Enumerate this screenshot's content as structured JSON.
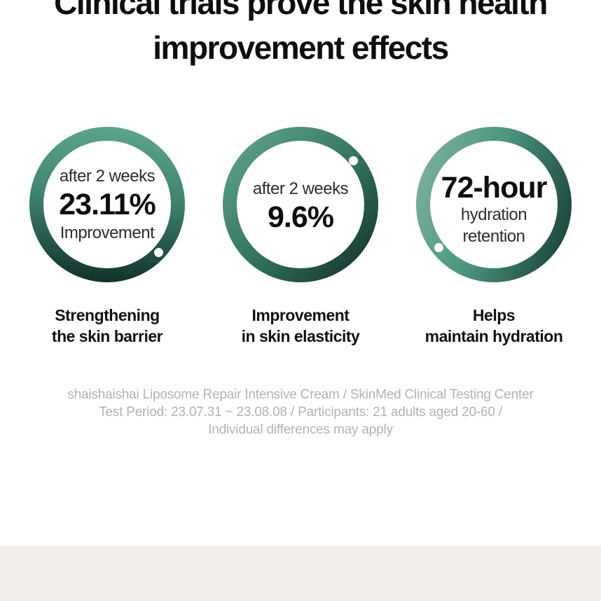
{
  "page": {
    "background": "#ffffff",
    "band_color": "#f0edea",
    "ring_light_green": "#5da78e",
    "ring_dark_green": "#0f2e27"
  },
  "title": {
    "line1": "Clinical trials prove the skin health",
    "line2": "improvement effects"
  },
  "stats": [
    {
      "top_text": "after 2 weeks",
      "value": "23.11%",
      "bottom_text": "Improvement",
      "label_line1": "Strengthening",
      "label_line2": "the skin barrier"
    },
    {
      "top_text": "after 2 weeks",
      "value": "9.6%",
      "bottom_text": "",
      "label_line1": "Improvement",
      "label_line2": "in skin elasticity"
    },
    {
      "value": "72-hour",
      "sub_line1": "hydration",
      "sub_line2": "retention",
      "label_line1": "Helps",
      "label_line2": "maintain hydration"
    }
  ],
  "footnote": {
    "line1": "shaishaishai Liposome Repair Intensive Cream / SkinMed Clinical Testing Center",
    "line2": "Test Period: 23.07.31 ~ 23.08.08 / Participants: 21 adults aged 20-60 /",
    "line3": "Individual differences may apply"
  }
}
